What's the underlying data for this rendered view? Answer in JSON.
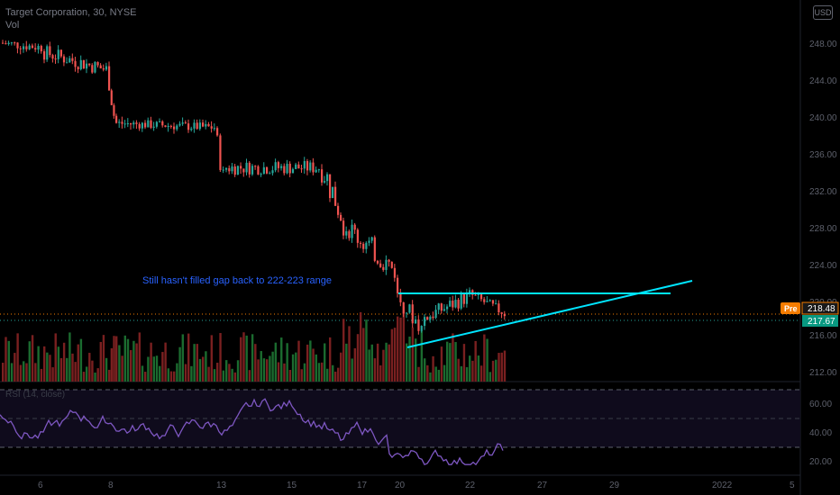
{
  "header": {
    "title": "Target Corporation, 30, NYSE",
    "volume_label": "Vol",
    "rsi_label": "RSI (14, close)",
    "badge": "USD"
  },
  "annotation": "Still hasn't filled gap back to 222-223 range",
  "price_axis": {
    "ticks": [
      "248.00",
      "244.00",
      "240.00",
      "236.00",
      "232.00",
      "228.00",
      "224.00",
      "220.00",
      "216.00",
      "212.00"
    ],
    "pre_label": "Pre",
    "pre_value": "218.48",
    "last_value": "217.67"
  },
  "rsi_axis": {
    "ticks": [
      "60.00",
      "40.00",
      "20.00"
    ]
  },
  "time_axis": {
    "ticks": [
      "6",
      "8",
      "13",
      "15",
      "17",
      "20",
      "22",
      "27",
      "29",
      "2022",
      "5"
    ]
  },
  "colors": {
    "up": "#26a69a",
    "down": "#ef5350",
    "up_vol": "#1b6b2f",
    "down_vol": "#7a2020",
    "trendline": "#00e5ff",
    "annotation": "#2962ff",
    "rsi": "#7e57c2",
    "pre_badge": "#f57c00",
    "last_badge": "#089981"
  },
  "chart_data": {
    "type": "candlestick",
    "title": "Target Corporation, 30, NYSE",
    "ylim": [
      210,
      252
    ],
    "indicators": [
      "Vol",
      "RSI (14, close)"
    ],
    "rsi_levels": [
      70,
      50,
      30
    ],
    "price_segments": [
      {
        "date": "6",
        "open": 248,
        "close": 247.5,
        "low": 246,
        "high": 249.5
      },
      {
        "date": "8",
        "open": 247,
        "close": 245,
        "low": 243,
        "high": 248
      },
      {
        "date": "8",
        "open": 246,
        "close": 240,
        "low": 238,
        "high": 247
      },
      {
        "date": "13",
        "open": 239,
        "close": 238.5,
        "low": 237,
        "high": 240
      },
      {
        "date": "13",
        "open": 238.5,
        "close": 233,
        "low": 232,
        "high": 239
      },
      {
        "date": "15",
        "open": 234,
        "close": 234,
        "low": 232,
        "high": 236.5
      },
      {
        "date": "17",
        "open": 235,
        "close": 229,
        "low": 226,
        "high": 237
      },
      {
        "date": "17",
        "open": 228,
        "close": 222.5,
        "low": 221,
        "high": 229
      },
      {
        "date": "20",
        "open": 220,
        "close": 216,
        "low": 215,
        "high": 221
      },
      {
        "date": "22",
        "open": 217,
        "close": 219.5,
        "low": 216,
        "high": 221
      },
      {
        "date": "22",
        "open": 220,
        "close": 217.67,
        "low": 217,
        "high": 220.5
      }
    ],
    "last_price": 217.67,
    "premarket_price": 218.48,
    "annotation": "Still hasn't filled gap back to 222-223 range"
  }
}
